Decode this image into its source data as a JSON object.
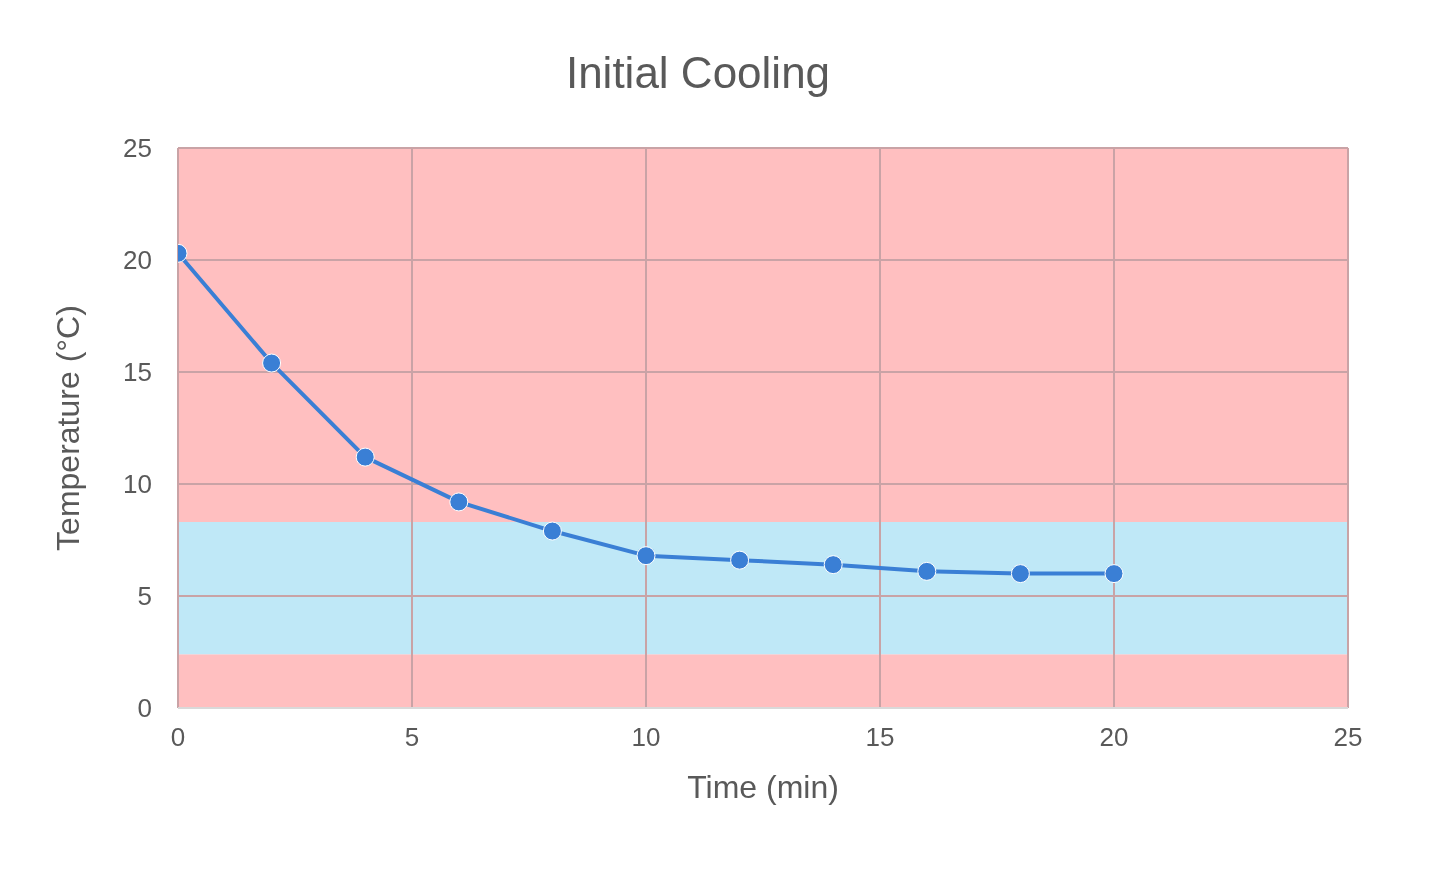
{
  "chart_data": {
    "type": "line",
    "title": "Initial Cooling",
    "xlabel": "Time (min)",
    "ylabel": "Temperature (°C)",
    "x": [
      0,
      2,
      4,
      6,
      8,
      10,
      12,
      14,
      16,
      18,
      20
    ],
    "series": [
      {
        "color": "#3a7fd5",
        "values": [
          20.3,
          15.4,
          11.2,
          9.2,
          7.9,
          6.8,
          6.6,
          6.4,
          6.1,
          6.0,
          6.0
        ]
      }
    ],
    "xlim": [
      0,
      25
    ],
    "xticks": [
      0,
      5,
      10,
      15,
      20,
      25
    ],
    "ylim": [
      0,
      25
    ],
    "yticks": [
      0,
      5,
      10,
      15,
      20,
      25
    ],
    "bands": [
      {
        "axis": "y",
        "from": 0,
        "to": 2.4,
        "color": "#ffbfc0"
      },
      {
        "axis": "y",
        "from": 2.4,
        "to": 8.3,
        "color": "#bfe8f7"
      },
      {
        "axis": "y",
        "from": 8.3,
        "to": 25,
        "color": "#ffbfc0"
      }
    ],
    "grid": true,
    "marker": "circle",
    "line_style": "solid"
  }
}
